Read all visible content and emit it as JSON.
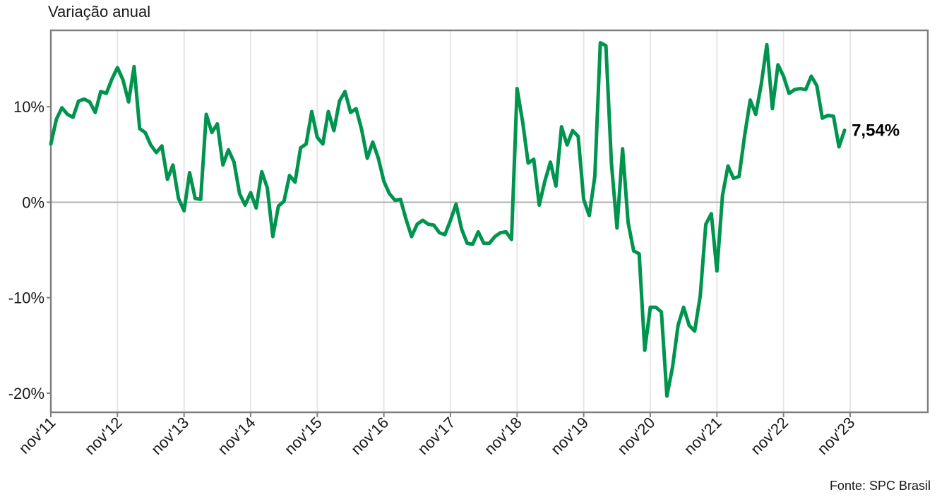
{
  "chart_data": {
    "type": "line",
    "y_title": "Variação anual",
    "source": "Fonte: SPC Brasil",
    "ylim": [
      -22,
      18
    ],
    "y_ticks": [
      {
        "value": 10,
        "label": "10%"
      },
      {
        "value": 0,
        "label": "0%"
      },
      {
        "value": -10,
        "label": "-10%"
      },
      {
        "value": -20,
        "label": "-20%"
      }
    ],
    "x_ticks": [
      {
        "index": 0,
        "label": "nov'11"
      },
      {
        "index": 12,
        "label": "nov'12"
      },
      {
        "index": 24,
        "label": "nov'13"
      },
      {
        "index": 36,
        "label": "nov'14"
      },
      {
        "index": 48,
        "label": "nov'15"
      },
      {
        "index": 60,
        "label": "nov'16"
      },
      {
        "index": 72,
        "label": "nov'17"
      },
      {
        "index": 84,
        "label": "nov'18"
      },
      {
        "index": 96,
        "label": "nov'19"
      },
      {
        "index": 108,
        "label": "nov'20"
      },
      {
        "index": 120,
        "label": "nov'21"
      },
      {
        "index": 132,
        "label": "nov'22"
      },
      {
        "index": 144,
        "label": "nov'23"
      }
    ],
    "x_max_index": 158,
    "grid_vertical": true,
    "zero_line": true,
    "line_color": "#00944f",
    "series": [
      {
        "values": [
          6.1,
          8.7,
          9.9,
          9.2,
          8.9,
          10.6,
          10.8,
          10.5,
          9.4,
          11.6,
          11.4,
          12.9,
          14.1,
          12.8,
          10.5,
          14.2,
          7.7,
          7.3,
          6.0,
          5.2,
          5.9,
          2.4,
          3.9,
          0.4,
          -0.9,
          3.1,
          0.4,
          0.3,
          9.2,
          7.3,
          8.2,
          3.9,
          5.5,
          4.2,
          0.9,
          -0.3,
          1.0,
          -0.6,
          3.2,
          1.5,
          -3.6,
          -0.4,
          0.1,
          2.8,
          2.1,
          5.7,
          6.1,
          9.5,
          6.8,
          6.1,
          9.5,
          7.5,
          10.6,
          11.6,
          9.4,
          9.8,
          7.6,
          4.6,
          6.3,
          4.6,
          2.2,
          0.9,
          0.2,
          0.3,
          -1.8,
          -3.6,
          -2.3,
          -1.9,
          -2.3,
          -2.4,
          -3.2,
          -3.4,
          -1.9,
          -0.2,
          -2.8,
          -4.3,
          -4.4,
          -3.1,
          -4.3,
          -4.3,
          -3.6,
          -3.2,
          -3.1,
          -3.9,
          11.9,
          8.4,
          4.1,
          4.5,
          -0.3,
          2.2,
          4.2,
          1.7,
          7.9,
          6.0,
          7.5,
          6.9,
          0.3,
          -1.4,
          2.7,
          16.7,
          16.4,
          4.1,
          -2.7,
          5.6,
          -2.1,
          -5.1,
          -5.4,
          -15.5,
          -11.0,
          -11.0,
          -11.5,
          -20.3,
          -17.3,
          -12.9,
          -11.0,
          -12.9,
          -13.5,
          -9.8,
          -2.3,
          -1.2,
          -7.2,
          0.7,
          3.8,
          2.5,
          2.7,
          7.0,
          10.7,
          9.2,
          12.4,
          16.5,
          9.8,
          14.4,
          13.2,
          11.4,
          11.8,
          11.9,
          11.8,
          13.2,
          12.2,
          8.8,
          9.1,
          9.0,
          5.8,
          7.54
        ]
      }
    ],
    "end_label": "7,54%"
  }
}
